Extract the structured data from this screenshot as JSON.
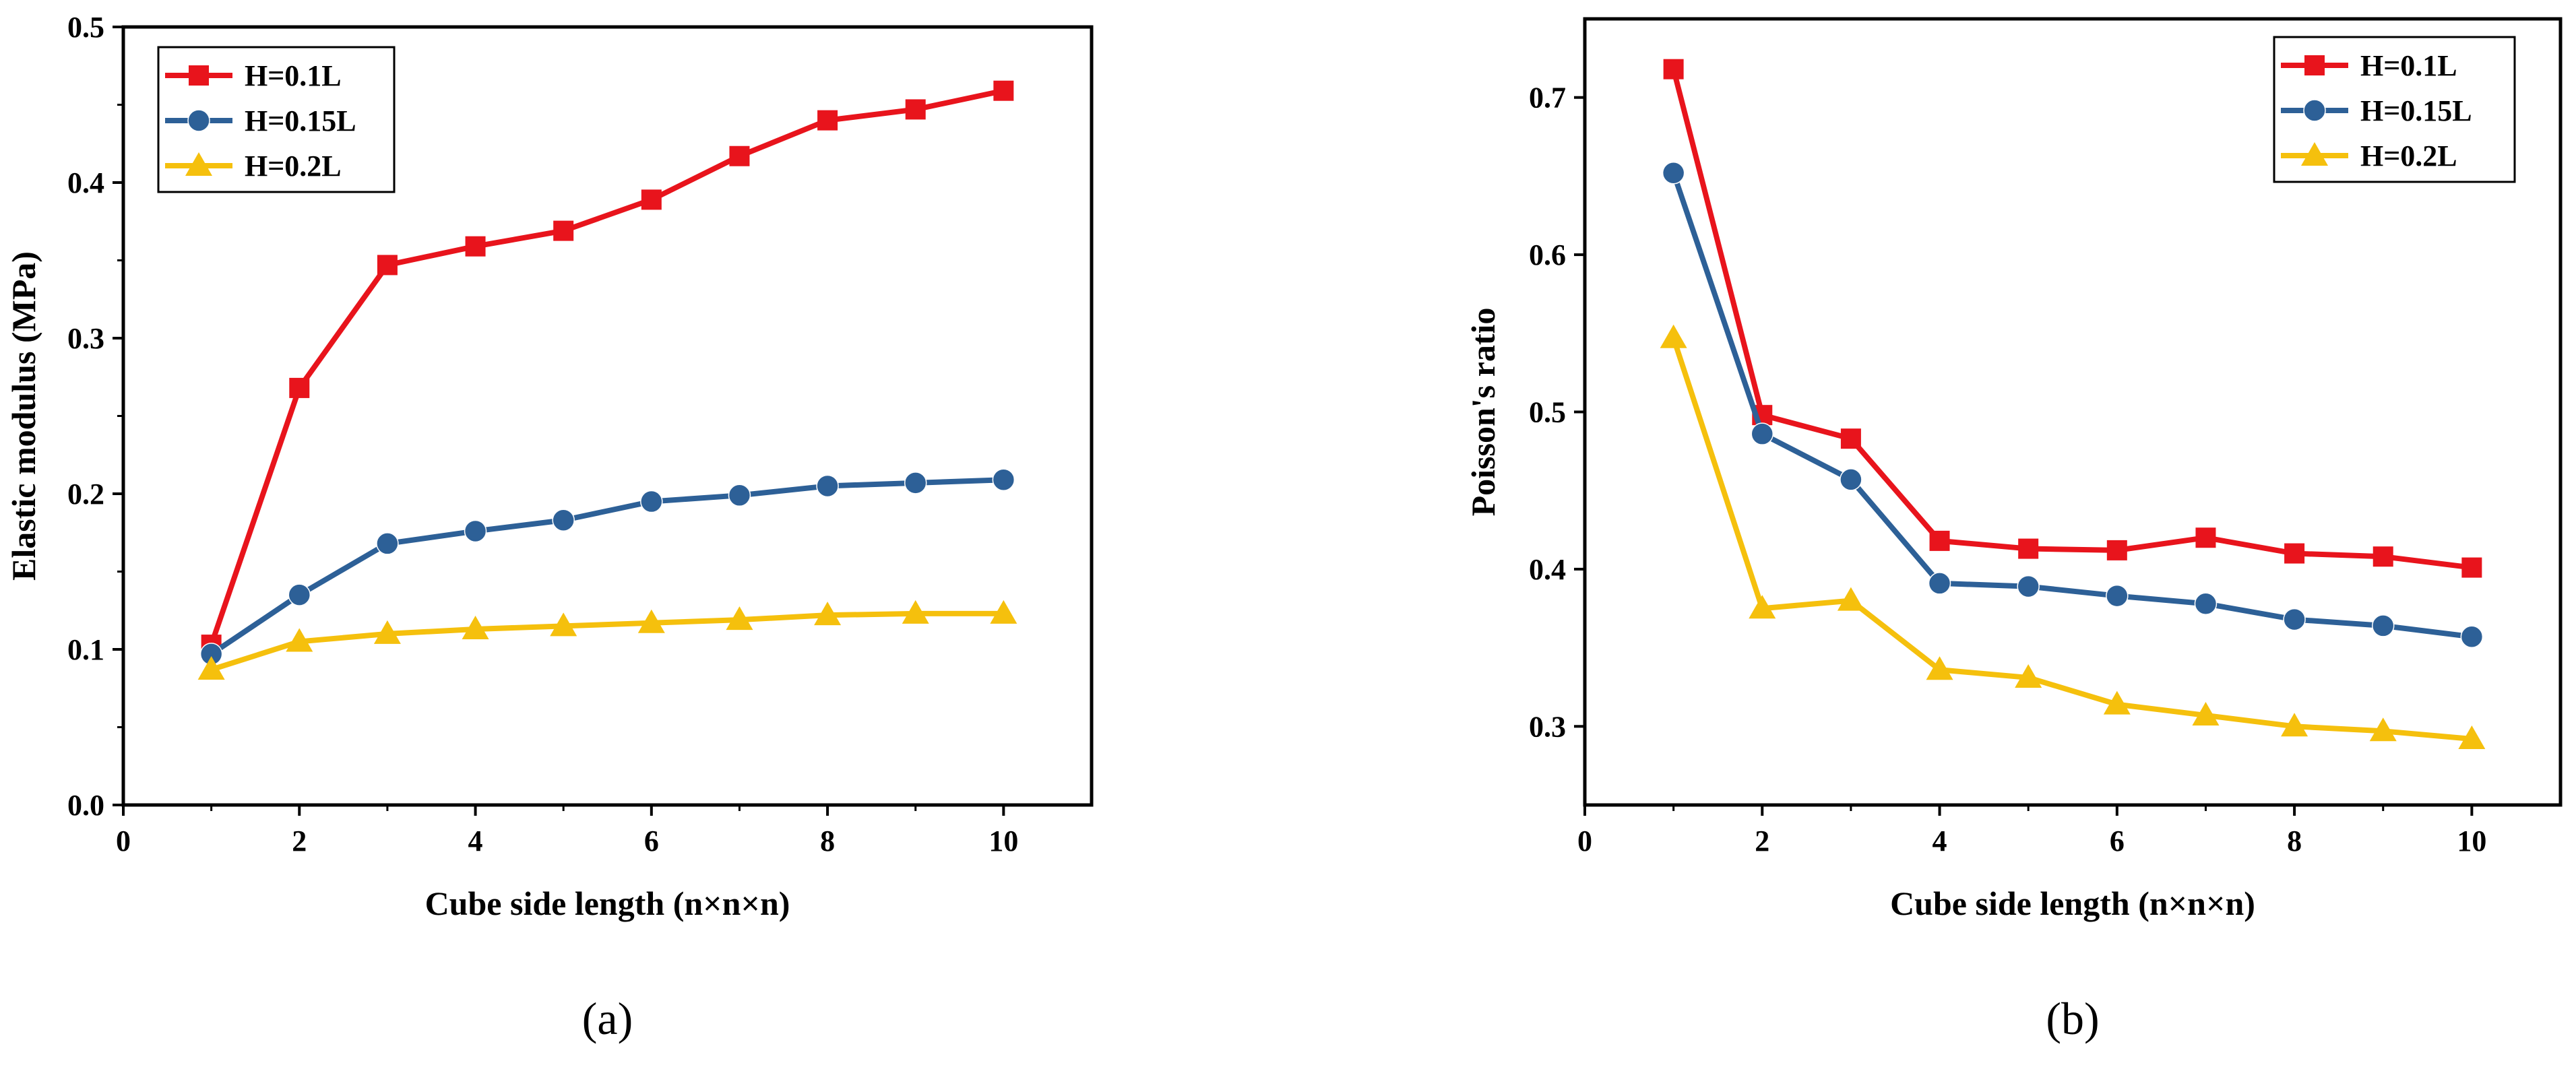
{
  "figure": {
    "colors": {
      "red": "#e8141c",
      "blue": "#2d6097",
      "yellow": "#f5c00d"
    }
  },
  "chart_data": [
    {
      "type": "line",
      "panel_label": "(a)",
      "title": "",
      "xlabel": "Cube side length (n×n×n)",
      "ylabel": "Elastic modulus (MPa)",
      "xlim": [
        0,
        11
      ],
      "ylim": [
        0,
        0.5
      ],
      "xticks": [
        0,
        2,
        4,
        6,
        8,
        10
      ],
      "yticks": [
        0.0,
        0.1,
        0.2,
        0.3,
        0.4,
        0.5
      ],
      "ytick_labels": [
        "0.0",
        "0.1",
        "0.2",
        "0.3",
        "0.4",
        "0.5"
      ],
      "legend_position": "top-left",
      "x": [
        1,
        2,
        3,
        4,
        5,
        6,
        7,
        8,
        9,
        10
      ],
      "series": [
        {
          "name": "H=0.1L",
          "marker": "square",
          "color": "#e8141c",
          "values": [
            0.103,
            0.268,
            0.347,
            0.359,
            0.369,
            0.389,
            0.417,
            0.44,
            0.447,
            0.459
          ]
        },
        {
          "name": "H=0.15L",
          "marker": "circle",
          "color": "#2d6097",
          "values": [
            0.097,
            0.135,
            0.168,
            0.176,
            0.183,
            0.195,
            0.199,
            0.205,
            0.207,
            0.209
          ]
        },
        {
          "name": "H=0.2L",
          "marker": "triangle",
          "color": "#f5c00d",
          "values": [
            0.087,
            0.105,
            0.11,
            0.113,
            0.115,
            0.117,
            0.119,
            0.122,
            0.123,
            0.123
          ]
        }
      ]
    },
    {
      "type": "line",
      "panel_label": "(b)",
      "title": "",
      "xlabel": "Cube side length (n×n×n)",
      "ylabel": "Poisson's ratio",
      "xlim": [
        0,
        11
      ],
      "ylim": [
        0.25,
        0.75
      ],
      "xticks": [
        0,
        2,
        4,
        6,
        8,
        10
      ],
      "yticks": [
        0.3,
        0.4,
        0.5,
        0.6,
        0.7
      ],
      "ytick_labels": [
        "0.3",
        "0.4",
        "0.5",
        "0.6",
        "0.7"
      ],
      "legend_position": "top-right",
      "x": [
        1,
        2,
        3,
        4,
        5,
        6,
        7,
        8,
        9,
        10
      ],
      "series": [
        {
          "name": "H=0.1L",
          "marker": "square",
          "color": "#e8141c",
          "values": [
            0.718,
            0.498,
            0.483,
            0.418,
            0.413,
            0.412,
            0.42,
            0.41,
            0.408,
            0.401
          ]
        },
        {
          "name": "H=0.15L",
          "marker": "circle",
          "color": "#2d6097",
          "values": [
            0.652,
            0.486,
            0.457,
            0.391,
            0.389,
            0.383,
            0.378,
            0.368,
            0.364,
            0.357
          ]
        },
        {
          "name": "H=0.2L",
          "marker": "triangle",
          "color": "#f5c00d",
          "values": [
            0.547,
            0.375,
            0.38,
            0.336,
            0.331,
            0.314,
            0.307,
            0.3,
            0.297,
            0.292
          ]
        }
      ]
    }
  ]
}
